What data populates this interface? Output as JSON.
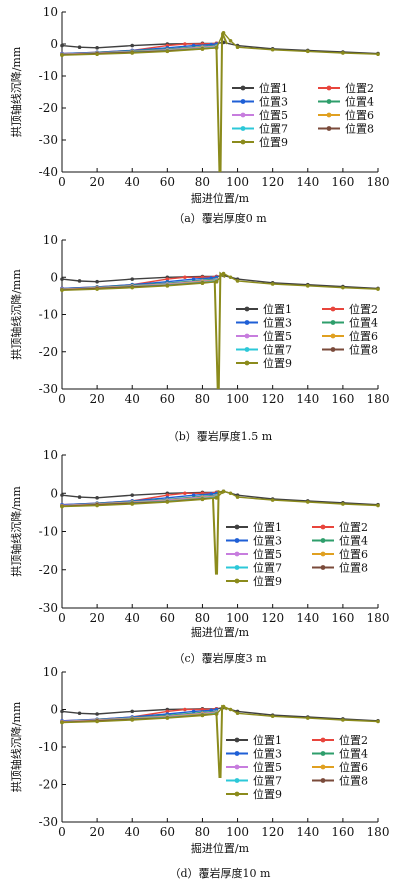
{
  "figure": {
    "series_colors": [
      "#404040",
      "#e8453c",
      "#1f5fd6",
      "#2e9e6b",
      "#c77dde",
      "#e0a020",
      "#2cc8d8",
      "#7a4a3a",
      "#8b8b1c"
    ]
  },
  "chart_data": [
    {
      "type": "line",
      "title": "",
      "caption": "（a）覆岩厚度0 m",
      "xlabel": "掘进位置/m",
      "ylabel": "拱顶轴线沉降/mm",
      "xlim": [
        0,
        180
      ],
      "ylim": [
        -40,
        10
      ],
      "xticks": [
        0,
        20,
        40,
        60,
        80,
        100,
        120,
        140,
        160,
        180
      ],
      "yticks": [
        10,
        0,
        -10,
        -20,
        -30,
        -40
      ],
      "grid": false,
      "legend": "center-right",
      "spike": {
        "x": 90,
        "min": -40,
        "max": 3.5
      },
      "series": [
        {
          "name": "位置1",
          "color": "#404040",
          "x": [
            0,
            10,
            20,
            40,
            60,
            80,
            88,
            92,
            100,
            120,
            140,
            160,
            180
          ],
          "y": [
            -0.5,
            -1.0,
            -1.2,
            -0.5,
            0.0,
            0.2,
            0.2,
            0.5,
            -0.5,
            -1.5,
            -2.0,
            -2.5,
            -3.0
          ]
        },
        {
          "name": "位置2",
          "color": "#e8453c",
          "x": [
            0,
            20,
            40,
            60,
            70,
            80,
            88
          ],
          "y": [
            -3.0,
            -2.6,
            -2.0,
            -0.5,
            0.0,
            0.0,
            0.2
          ]
        },
        {
          "name": "位置3",
          "color": "#1f5fd6",
          "x": [
            0,
            20,
            40,
            60,
            75,
            85,
            88
          ],
          "y": [
            -3.0,
            -2.6,
            -2.0,
            -1.2,
            -0.5,
            -0.2,
            0.0
          ]
        },
        {
          "name": "位置4",
          "color": "#2e9e6b",
          "x": [
            0,
            20,
            40,
            60,
            80,
            88
          ],
          "y": [
            -3.2,
            -2.7,
            -2.2,
            -1.6,
            -0.8,
            -0.5
          ]
        },
        {
          "name": "位置5",
          "color": "#c77dde",
          "x": [
            0,
            20,
            40,
            60,
            80,
            88
          ],
          "y": [
            -3.2,
            -2.8,
            -2.3,
            -1.8,
            -1.0,
            -0.7
          ]
        },
        {
          "name": "位置6",
          "color": "#e0a020",
          "x": [
            0,
            20,
            40,
            60,
            80,
            88
          ],
          "y": [
            -3.3,
            -2.9,
            -2.4,
            -2.0,
            -1.2,
            -0.9
          ]
        },
        {
          "name": "位置7",
          "color": "#2cc8d8",
          "x": [
            0,
            20,
            40,
            60,
            80,
            88
          ],
          "y": [
            -3.4,
            -3.0,
            -2.5,
            -2.1,
            -1.4,
            -1.0
          ]
        },
        {
          "name": "位置8",
          "color": "#7a4a3a",
          "x": [
            0,
            20,
            40,
            60,
            80,
            88
          ],
          "y": [
            -3.4,
            -3.0,
            -2.6,
            -2.2,
            -1.5,
            -1.2
          ]
        },
        {
          "name": "位置9",
          "color": "#8b8b1c",
          "x": [
            0,
            20,
            40,
            60,
            80,
            88,
            92,
            96,
            100,
            120,
            140,
            160,
            180
          ],
          "y": [
            -3.5,
            -3.2,
            -2.8,
            -2.3,
            -1.6,
            -1.2,
            3.5,
            1.0,
            -1.0,
            -1.8,
            -2.3,
            -2.8,
            -3.2
          ]
        }
      ]
    },
    {
      "type": "line",
      "title": "",
      "caption": "（b）覆岩厚度1.5 m",
      "xlabel": "",
      "ylabel": "拱顶轴线沉降/mm",
      "xlim": [
        0,
        180
      ],
      "ylim": [
        -30,
        10
      ],
      "xticks": [
        0,
        20,
        40,
        60,
        80,
        100,
        120,
        140,
        160,
        180
      ],
      "yticks": [
        10,
        0,
        -10,
        -20,
        -30
      ],
      "grid": false,
      "legend": "bottom-right",
      "spike": {
        "x": 89,
        "min": -30,
        "max": 1.0
      },
      "series": [
        {
          "name": "位置1",
          "color": "#404040",
          "x": [
            0,
            10,
            20,
            40,
            60,
            80,
            88,
            92,
            100,
            120,
            140,
            160,
            180
          ],
          "y": [
            -0.5,
            -1.0,
            -1.2,
            -0.5,
            0.0,
            0.2,
            0.2,
            0.5,
            -0.5,
            -1.5,
            -2.0,
            -2.5,
            -3.0
          ]
        },
        {
          "name": "位置2",
          "color": "#e8453c",
          "x": [
            0,
            20,
            40,
            60,
            70,
            80,
            88
          ],
          "y": [
            -3.0,
            -2.6,
            -2.0,
            -0.5,
            0.0,
            0.0,
            0.2
          ]
        },
        {
          "name": "位置3",
          "color": "#1f5fd6",
          "x": [
            0,
            20,
            40,
            60,
            75,
            85,
            88
          ],
          "y": [
            -3.0,
            -2.6,
            -2.0,
            -1.2,
            -0.5,
            -0.2,
            0.0
          ]
        },
        {
          "name": "位置4",
          "color": "#2e9e6b",
          "x": [
            0,
            20,
            40,
            60,
            80,
            88
          ],
          "y": [
            -3.2,
            -2.7,
            -2.2,
            -1.6,
            -0.8,
            -0.5
          ]
        },
        {
          "name": "位置5",
          "color": "#c77dde",
          "x": [
            0,
            20,
            40,
            60,
            80,
            88
          ],
          "y": [
            -3.2,
            -2.8,
            -2.3,
            -1.8,
            -1.0,
            -0.7
          ]
        },
        {
          "name": "位置6",
          "color": "#e0a020",
          "x": [
            0,
            20,
            40,
            60,
            80,
            88
          ],
          "y": [
            -3.3,
            -2.9,
            -2.4,
            -2.0,
            -1.2,
            -0.9
          ]
        },
        {
          "name": "位置7",
          "color": "#2cc8d8",
          "x": [
            0,
            20,
            40,
            60,
            80,
            88
          ],
          "y": [
            -3.4,
            -3.0,
            -2.5,
            -2.1,
            -1.4,
            -1.0
          ]
        },
        {
          "name": "位置8",
          "color": "#7a4a3a",
          "x": [
            0,
            20,
            40,
            60,
            80,
            88
          ],
          "y": [
            -3.4,
            -3.0,
            -2.6,
            -2.2,
            -1.5,
            -1.2
          ]
        },
        {
          "name": "位置9",
          "color": "#8b8b1c",
          "x": [
            0,
            20,
            40,
            60,
            80,
            88,
            92,
            96,
            100,
            120,
            140,
            160,
            180
          ],
          "y": [
            -3.5,
            -3.2,
            -2.8,
            -2.3,
            -1.6,
            -1.2,
            1.0,
            0.0,
            -1.0,
            -1.8,
            -2.3,
            -2.8,
            -3.2
          ]
        }
      ]
    },
    {
      "type": "line",
      "title": "",
      "caption": "（c）覆岩厚度3 m",
      "xlabel": "掘进位置/m",
      "ylabel": "拱顶轴线沉降/mm",
      "xlim": [
        0,
        180
      ],
      "ylim": [
        -30,
        10
      ],
      "xticks": [
        0,
        20,
        40,
        60,
        80,
        100,
        120,
        140,
        160,
        180
      ],
      "yticks": [
        10,
        0,
        -10,
        -20,
        -30
      ],
      "grid": false,
      "legend": "bottom-right",
      "spike": {
        "x": 88,
        "min": -21,
        "max": 0.5
      },
      "series": [
        {
          "name": "位置1",
          "color": "#404040",
          "x": [
            0,
            10,
            20,
            40,
            60,
            80,
            88,
            92,
            100,
            120,
            140,
            160,
            180
          ],
          "y": [
            -0.5,
            -1.0,
            -1.2,
            -0.5,
            0.0,
            0.2,
            0.2,
            0.5,
            -0.5,
            -1.5,
            -2.0,
            -2.5,
            -3.0
          ]
        },
        {
          "name": "位置2",
          "color": "#e8453c",
          "x": [
            0,
            20,
            40,
            60,
            70,
            80,
            88
          ],
          "y": [
            -3.0,
            -2.6,
            -2.0,
            -0.5,
            0.0,
            0.0,
            0.2
          ]
        },
        {
          "name": "位置3",
          "color": "#1f5fd6",
          "x": [
            0,
            20,
            40,
            60,
            75,
            85,
            88
          ],
          "y": [
            -3.0,
            -2.6,
            -2.0,
            -1.2,
            -0.5,
            -0.2,
            0.0
          ]
        },
        {
          "name": "位置4",
          "color": "#2e9e6b",
          "x": [
            0,
            20,
            40,
            60,
            80,
            88
          ],
          "y": [
            -3.2,
            -2.7,
            -2.2,
            -1.6,
            -0.8,
            -0.5
          ]
        },
        {
          "name": "位置5",
          "color": "#c77dde",
          "x": [
            0,
            20,
            40,
            60,
            80,
            88
          ],
          "y": [
            -3.2,
            -2.8,
            -2.3,
            -1.8,
            -1.0,
            -0.7
          ]
        },
        {
          "name": "位置6",
          "color": "#e0a020",
          "x": [
            0,
            20,
            40,
            60,
            80,
            88
          ],
          "y": [
            -3.3,
            -2.9,
            -2.4,
            -2.0,
            -1.2,
            -0.9
          ]
        },
        {
          "name": "位置7",
          "color": "#2cc8d8",
          "x": [
            0,
            20,
            40,
            60,
            80,
            88
          ],
          "y": [
            -3.4,
            -3.0,
            -2.5,
            -2.1,
            -1.4,
            -1.0
          ]
        },
        {
          "name": "位置8",
          "color": "#7a4a3a",
          "x": [
            0,
            20,
            40,
            60,
            80,
            88
          ],
          "y": [
            -3.4,
            -3.0,
            -2.6,
            -2.2,
            -1.5,
            -1.2
          ]
        },
        {
          "name": "位置9",
          "color": "#8b8b1c",
          "x": [
            0,
            20,
            40,
            60,
            80,
            88,
            92,
            96,
            100,
            120,
            140,
            160,
            180
          ],
          "y": [
            -3.5,
            -3.2,
            -2.8,
            -2.3,
            -1.6,
            -1.2,
            0.5,
            0.0,
            -1.0,
            -1.8,
            -2.3,
            -2.8,
            -3.2
          ]
        }
      ]
    },
    {
      "type": "line",
      "title": "",
      "caption": "（d）覆岩厚度10 m",
      "xlabel": "掘进位置/m",
      "ylabel": "拱顶轴线沉降/mm",
      "xlim": [
        0,
        180
      ],
      "ylim": [
        -30,
        10
      ],
      "xticks": [
        0,
        20,
        40,
        60,
        80,
        100,
        120,
        140,
        160,
        180
      ],
      "yticks": [
        10,
        0,
        -10,
        -20,
        -30
      ],
      "grid": false,
      "legend": "bottom-left",
      "spike": {
        "x": 90,
        "min": -18,
        "max": 0.8
      },
      "series": [
        {
          "name": "位置1",
          "color": "#404040",
          "x": [
            0,
            10,
            20,
            40,
            60,
            80,
            88,
            92,
            100,
            120,
            140,
            160,
            180
          ],
          "y": [
            -0.5,
            -1.0,
            -1.2,
            -0.5,
            0.0,
            0.2,
            0.2,
            0.5,
            -0.5,
            -1.5,
            -2.0,
            -2.5,
            -3.0
          ]
        },
        {
          "name": "位置2",
          "color": "#e8453c",
          "x": [
            0,
            20,
            40,
            60,
            70,
            80,
            88
          ],
          "y": [
            -3.0,
            -2.6,
            -2.0,
            -0.5,
            0.0,
            0.0,
            0.2
          ]
        },
        {
          "name": "位置3",
          "color": "#1f5fd6",
          "x": [
            0,
            20,
            40,
            60,
            75,
            85,
            88
          ],
          "y": [
            -3.0,
            -2.6,
            -2.0,
            -1.2,
            -0.5,
            -0.2,
            0.0
          ]
        },
        {
          "name": "位置4",
          "color": "#2e9e6b",
          "x": [
            0,
            20,
            40,
            60,
            80,
            88
          ],
          "y": [
            -3.2,
            -2.7,
            -2.2,
            -1.6,
            -0.8,
            -0.5
          ]
        },
        {
          "name": "位置5",
          "color": "#c77dde",
          "x": [
            0,
            20,
            40,
            60,
            80,
            88
          ],
          "y": [
            -3.2,
            -2.8,
            -2.3,
            -1.8,
            -1.0,
            -0.7
          ]
        },
        {
          "name": "位置6",
          "color": "#e0a020",
          "x": [
            0,
            20,
            40,
            60,
            80,
            88
          ],
          "y": [
            -3.3,
            -2.9,
            -2.4,
            -2.0,
            -1.2,
            -0.9
          ]
        },
        {
          "name": "位置7",
          "color": "#2cc8d8",
          "x": [
            0,
            20,
            40,
            60,
            80,
            88
          ],
          "y": [
            -3.4,
            -3.0,
            -2.5,
            -2.1,
            -1.4,
            -1.0
          ]
        },
        {
          "name": "位置8",
          "color": "#7a4a3a",
          "x": [
            0,
            20,
            40,
            60,
            80,
            88
          ],
          "y": [
            -3.4,
            -3.0,
            -2.6,
            -2.2,
            -1.5,
            -1.2
          ]
        },
        {
          "name": "位置9",
          "color": "#8b8b1c",
          "x": [
            0,
            20,
            40,
            60,
            80,
            88,
            92,
            96,
            100,
            120,
            140,
            160,
            180
          ],
          "y": [
            -3.5,
            -3.2,
            -2.8,
            -2.3,
            -1.6,
            -1.2,
            0.8,
            0.0,
            -1.0,
            -1.8,
            -2.3,
            -2.8,
            -3.2
          ]
        }
      ]
    }
  ]
}
